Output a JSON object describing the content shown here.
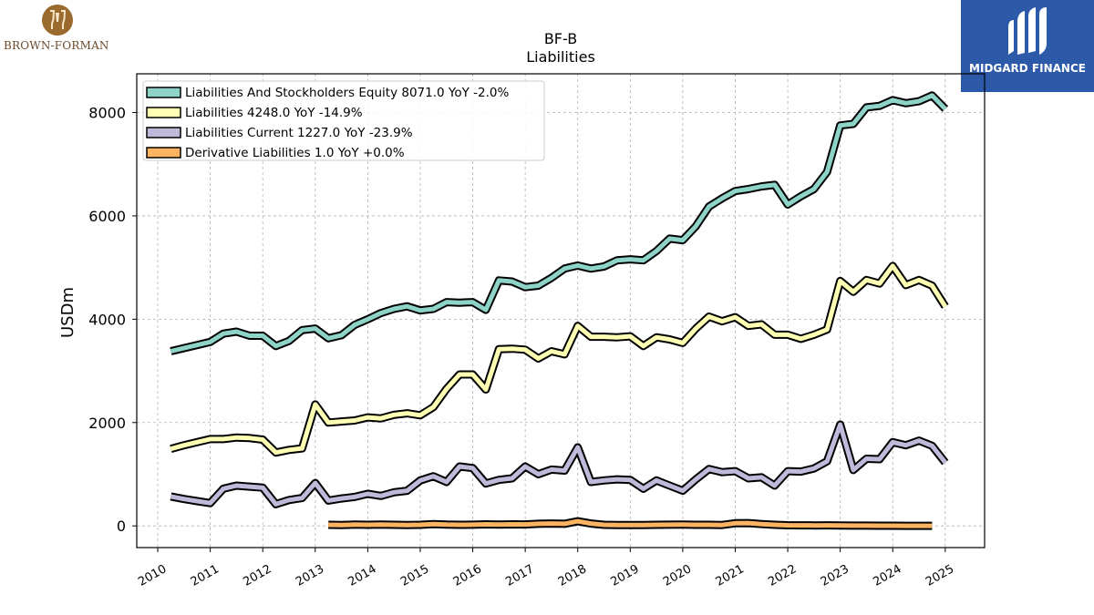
{
  "brand_left": {
    "name": "BROWN-FORMAN",
    "icon": "brown-forman-crest-icon"
  },
  "brand_right": {
    "name": "MIDGARD FINANCE",
    "icon": "midgard-m-icon",
    "color": "#2c5aa8"
  },
  "chart_data": {
    "type": "line",
    "title": "BF-B",
    "subtitle": "Liabilities",
    "ylabel": "USDm",
    "xlabel": "",
    "ylim": [
      -420,
      8750
    ],
    "xlim": [
      2009.6,
      2025.75
    ],
    "yticks": [
      0,
      2000,
      4000,
      6000,
      8000
    ],
    "xticks": [
      2010,
      2011,
      2012,
      2013,
      2014,
      2015,
      2016,
      2017,
      2018,
      2019,
      2020,
      2021,
      2022,
      2023,
      2024,
      2025
    ],
    "grid": true,
    "legend_position": "top-left",
    "series": [
      {
        "name": "Liabilities And Stockholders Equity",
        "legend": "Liabilities And Stockholders Equity  8071.0 YoY -2.0%",
        "color": "#8dd3c7",
        "x": [
          2010.25,
          2010.5,
          2010.75,
          2011.0,
          2011.25,
          2011.5,
          2011.75,
          2012.0,
          2012.25,
          2012.5,
          2012.75,
          2013.0,
          2013.25,
          2013.5,
          2013.75,
          2014.0,
          2014.25,
          2014.5,
          2014.75,
          2015.0,
          2015.25,
          2015.5,
          2015.75,
          2016.0,
          2016.25,
          2016.5,
          2016.75,
          2017.0,
          2017.25,
          2017.5,
          2017.75,
          2018.0,
          2018.25,
          2018.5,
          2018.75,
          2019.0,
          2019.25,
          2019.5,
          2019.75,
          2020.0,
          2020.25,
          2020.5,
          2020.75,
          2021.0,
          2021.25,
          2021.5,
          2021.75,
          2022.0,
          2022.25,
          2022.5,
          2022.75,
          2023.0,
          2023.25,
          2023.5,
          2023.75,
          2024.0,
          2024.25,
          2024.5,
          2024.75,
          2025.0
        ],
        "values": [
          3380,
          3440,
          3500,
          3560,
          3720,
          3760,
          3680,
          3680,
          3480,
          3580,
          3790,
          3820,
          3630,
          3690,
          3890,
          4000,
          4120,
          4200,
          4250,
          4170,
          4200,
          4330,
          4320,
          4330,
          4180,
          4750,
          4730,
          4620,
          4650,
          4800,
          4980,
          5040,
          4980,
          5020,
          5140,
          5160,
          5140,
          5320,
          5560,
          5530,
          5800,
          6180,
          6340,
          6480,
          6520,
          6570,
          6600,
          6220,
          6380,
          6520,
          6850,
          7750,
          7780,
          8100,
          8130,
          8240,
          8180,
          8220,
          8330,
          8071
        ]
      },
      {
        "name": "Liabilities",
        "legend": "Liabilities  4248.0 YoY -14.9%",
        "color": "#ffffb3",
        "x": [
          2010.25,
          2010.5,
          2010.75,
          2011.0,
          2011.25,
          2011.5,
          2011.75,
          2012.0,
          2012.25,
          2012.5,
          2012.75,
          2013.0,
          2013.25,
          2013.5,
          2013.75,
          2014.0,
          2014.25,
          2014.5,
          2014.75,
          2015.0,
          2015.25,
          2015.5,
          2015.75,
          2016.0,
          2016.25,
          2016.5,
          2016.75,
          2017.0,
          2017.25,
          2017.5,
          2017.75,
          2018.0,
          2018.25,
          2018.5,
          2018.75,
          2019.0,
          2019.25,
          2019.5,
          2019.75,
          2020.0,
          2020.25,
          2020.5,
          2020.75,
          2021.0,
          2021.25,
          2021.5,
          2021.75,
          2022.0,
          2022.25,
          2022.5,
          2022.75,
          2023.0,
          2023.25,
          2023.5,
          2023.75,
          2024.0,
          2024.25,
          2024.5,
          2024.75,
          2025.0
        ],
        "values": [
          1490,
          1560,
          1620,
          1680,
          1680,
          1710,
          1700,
          1670,
          1420,
          1470,
          1500,
          2350,
          2000,
          2020,
          2040,
          2100,
          2080,
          2150,
          2180,
          2140,
          2300,
          2650,
          2930,
          2930,
          2640,
          3420,
          3430,
          3410,
          3240,
          3380,
          3320,
          3870,
          3660,
          3660,
          3650,
          3670,
          3480,
          3650,
          3610,
          3540,
          3820,
          4050,
          3960,
          4040,
          3870,
          3900,
          3700,
          3700,
          3620,
          3700,
          3800,
          4740,
          4530,
          4760,
          4690,
          5030,
          4660,
          4760,
          4650,
          4248
        ]
      },
      {
        "name": "Liabilities Current",
        "legend": "Liabilities Current  1227.0 YoY -23.9%",
        "color": "#bebada",
        "x": [
          2010.25,
          2010.5,
          2010.75,
          2011.0,
          2011.25,
          2011.5,
          2011.75,
          2012.0,
          2012.25,
          2012.5,
          2012.75,
          2013.0,
          2013.25,
          2013.5,
          2013.75,
          2014.0,
          2014.25,
          2014.5,
          2014.75,
          2015.0,
          2015.25,
          2015.5,
          2015.75,
          2016.0,
          2016.25,
          2016.5,
          2016.75,
          2017.0,
          2017.25,
          2017.5,
          2017.75,
          2018.0,
          2018.25,
          2018.5,
          2018.75,
          2019.0,
          2019.25,
          2019.5,
          2019.75,
          2020.0,
          2020.25,
          2020.5,
          2020.75,
          2021.0,
          2021.25,
          2021.5,
          2021.75,
          2022.0,
          2022.25,
          2022.5,
          2022.75,
          2023.0,
          2023.25,
          2023.5,
          2023.75,
          2024.0,
          2024.25,
          2024.5,
          2024.75,
          2025.0
        ],
        "values": [
          570,
          520,
          480,
          440,
          720,
          780,
          760,
          740,
          420,
          500,
          540,
          830,
          490,
          530,
          560,
          620,
          580,
          650,
          680,
          880,
          960,
          850,
          1150,
          1120,
          820,
          890,
          920,
          1150,
          1000,
          1090,
          1070,
          1520,
          850,
          880,
          900,
          890,
          720,
          880,
          780,
          680,
          900,
          1100,
          1040,
          1060,
          920,
          940,
          780,
          1060,
          1050,
          1110,
          1250,
          1960,
          1080,
          1300,
          1290,
          1620,
          1560,
          1650,
          1550,
          1227
        ]
      },
      {
        "name": "Derivative Liabilities",
        "legend": "Derivative Liabilities  1.0 YoY +0.0%",
        "color": "#fdb462",
        "x": [
          2013.25,
          2013.5,
          2013.75,
          2014.0,
          2014.25,
          2014.5,
          2014.75,
          2015.0,
          2015.25,
          2015.5,
          2015.75,
          2016.0,
          2016.25,
          2016.5,
          2016.75,
          2017.0,
          2017.25,
          2017.5,
          2017.75,
          2018.0,
          2018.25,
          2018.5,
          2018.75,
          2019.0,
          2019.25,
          2019.5,
          2019.75,
          2020.0,
          2020.25,
          2020.5,
          2020.75,
          2021.0,
          2021.25,
          2021.5,
          2021.75,
          2022.0,
          2022.25,
          2022.5,
          2022.75,
          2023.0,
          2023.25,
          2023.5,
          2023.75,
          2024.0,
          2024.25,
          2024.5,
          2024.75
        ],
        "values": [
          20,
          15,
          25,
          20,
          25,
          20,
          18,
          20,
          35,
          25,
          20,
          22,
          30,
          25,
          30,
          28,
          40,
          45,
          40,
          90,
          45,
          20,
          15,
          15,
          18,
          20,
          22,
          25,
          20,
          20,
          18,
          50,
          55,
          35,
          20,
          12,
          10,
          8,
          10,
          8,
          5,
          5,
          3,
          3,
          2,
          2,
          1
        ]
      }
    ]
  }
}
